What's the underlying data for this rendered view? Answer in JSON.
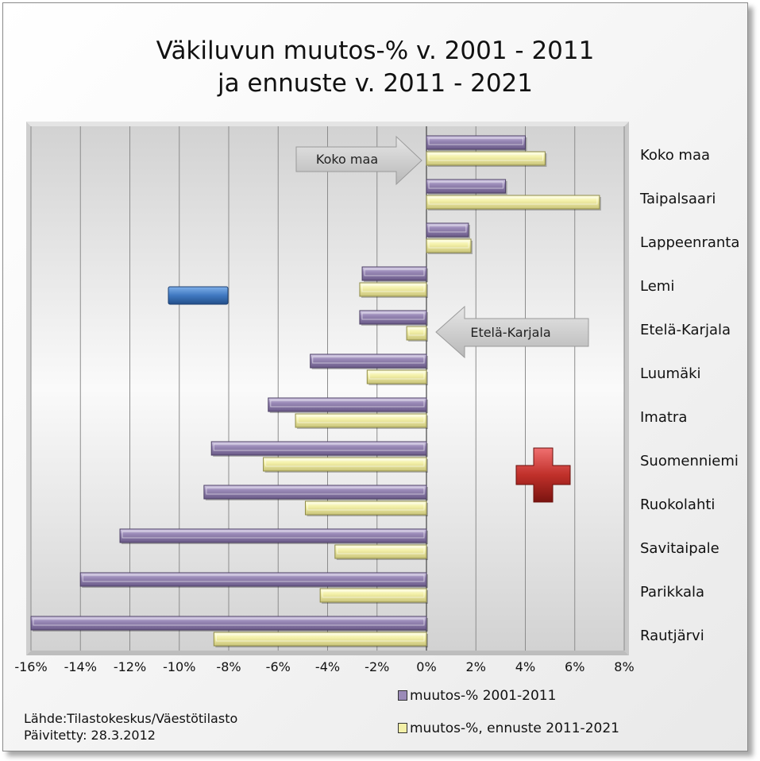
{
  "page_title": [
    "Väkiluvun muutos-% v. 2001 - 2011",
    "ja ennuste v. 2011 - 2021"
  ],
  "callouts": {
    "koko_maa": "Koko maa",
    "etela_karjala": "Etelä-Karjala"
  },
  "source": {
    "line1": "Lähde:Tilastokeskus/Väestötilasto",
    "line2": "Päivitetty: 28.3.2012"
  },
  "colors": {
    "series1": "#9b8bb8",
    "series2": "#f3f0a8",
    "blue_shape": "#3f78c0",
    "red_cross": "#c0302a"
  },
  "chart_data": {
    "type": "bar",
    "orientation": "horizontal",
    "title": "Väkiluvun muutos-% v. 2001 - 2011 ja ennuste v. 2011 - 2021",
    "xlabel": "",
    "ylabel": "",
    "xlim": [
      -16,
      8
    ],
    "x_ticks": [
      "-16%",
      "-14%",
      "-12%",
      "-10%",
      "-8%",
      "-6%",
      "-4%",
      "-2%",
      "0%",
      "2%",
      "4%",
      "6%",
      "8%"
    ],
    "grid": true,
    "legend_position": "bottom-right",
    "categories": [
      "Koko maa",
      "Taipalsaari",
      "Lappeenranta",
      "Lemi",
      "Etelä-Karjala",
      "Luumäki",
      "Imatra",
      "Suomenniemi",
      "Ruokolahti",
      "Savitaipale",
      "Parikkala",
      "Rautjärvi"
    ],
    "series": [
      {
        "name": "muutos-% 2001-2011",
        "values": [
          4.0,
          3.2,
          1.7,
          -2.6,
          -2.7,
          -4.7,
          -6.4,
          -8.7,
          -9.0,
          -12.4,
          -14.0,
          -16.0
        ]
      },
      {
        "name": "muutos-%, ennuste 2011-2021",
        "values": [
          4.8,
          7.0,
          1.8,
          -2.7,
          -0.8,
          -2.4,
          -5.3,
          -6.6,
          -4.9,
          -3.7,
          -4.3,
          -8.6
        ]
      }
    ]
  }
}
